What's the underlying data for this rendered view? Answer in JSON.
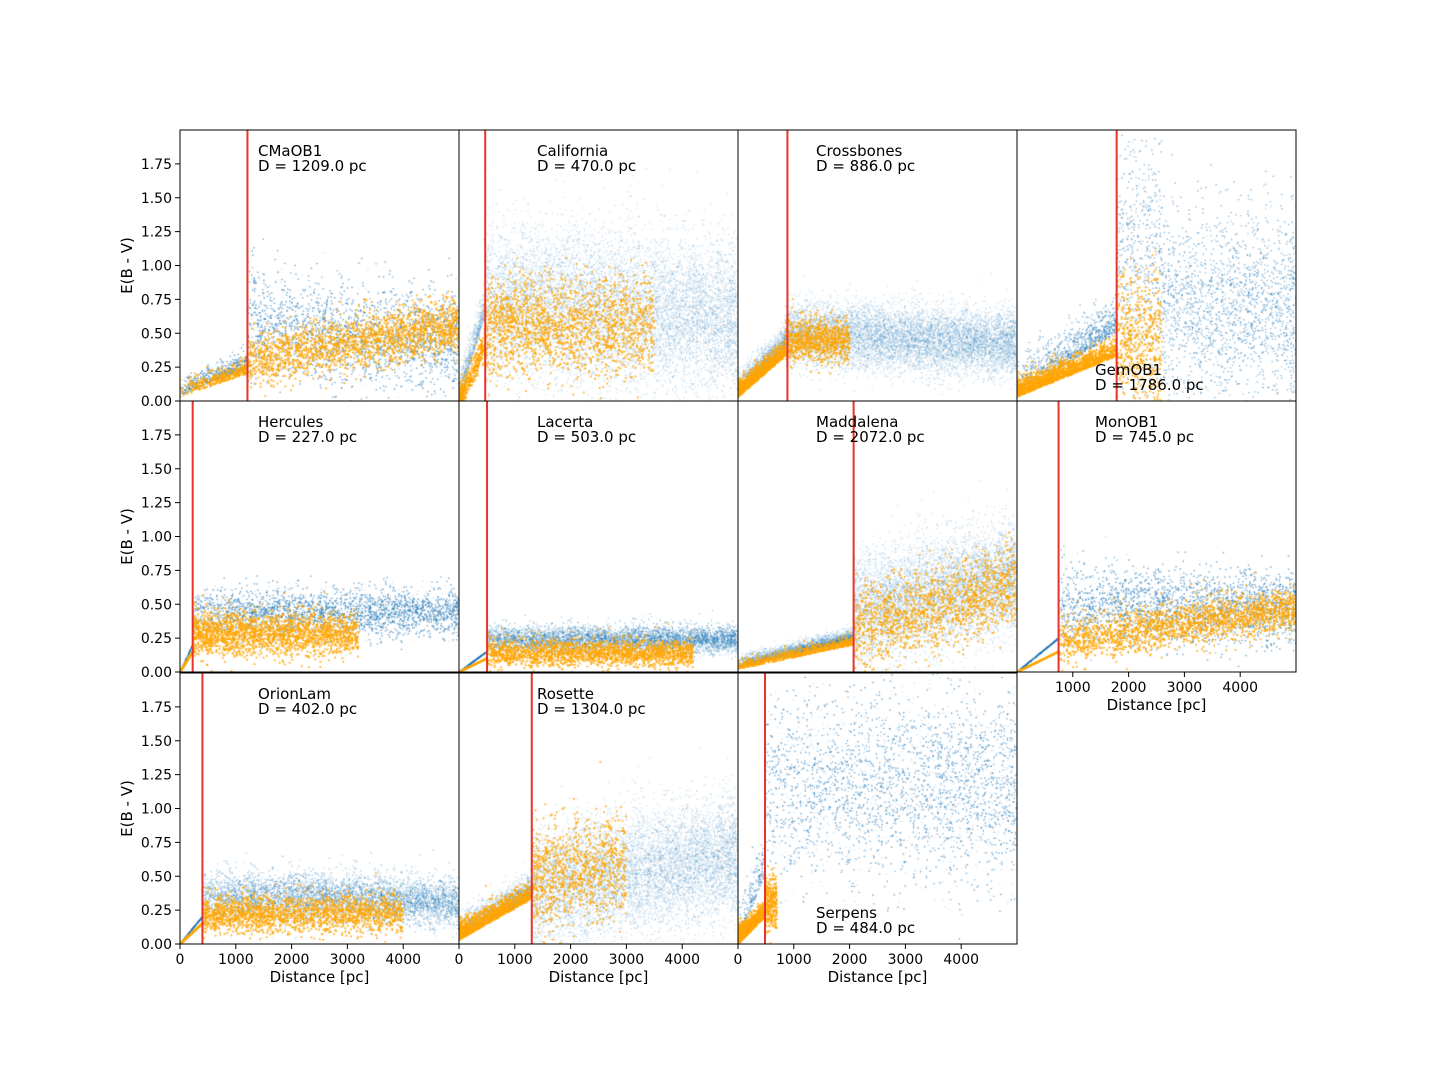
{
  "chart_data": {
    "type": "scatter",
    "x_label": "Distance [pc]",
    "y_label": "E(B - V)",
    "xlim": [
      0,
      5000
    ],
    "ylim": [
      0,
      2.0
    ],
    "x_ticks": [
      0,
      1000,
      2000,
      3000,
      4000
    ],
    "y_ticks": [
      0.0,
      0.25,
      0.5,
      0.75,
      1.0,
      1.25,
      1.5,
      1.75
    ],
    "grid": false,
    "colors": {
      "background_points": "#1f77b4",
      "highlight_points": "#ffa500",
      "distance_line": "#e8332a"
    },
    "panels": [
      {
        "name": "CMaOB1",
        "distance_label": "D = 1209.0 pc",
        "distance_pc": 1209.0,
        "label_position": "top",
        "shape": "cma",
        "show_x_ticks": false,
        "show_y_ticks": true
      },
      {
        "name": "California",
        "distance_label": "D = 470.0 pc",
        "distance_pc": 470.0,
        "label_position": "top",
        "shape": "cal",
        "show_x_ticks": false,
        "show_y_ticks": false
      },
      {
        "name": "Crossbones",
        "distance_label": "D = 886.0 pc",
        "distance_pc": 886.0,
        "label_position": "top",
        "shape": "cross",
        "show_x_ticks": false,
        "show_y_ticks": false
      },
      {
        "name": "GemOB1",
        "distance_label": "D = 1786.0 pc",
        "distance_pc": 1786.0,
        "label_position": "bottom",
        "shape": "gem",
        "show_x_ticks": false,
        "show_y_ticks": false
      },
      {
        "name": "Hercules",
        "distance_label": "D = 227.0 pc",
        "distance_pc": 227.0,
        "label_position": "top",
        "shape": "herc",
        "show_x_ticks": false,
        "show_y_ticks": true
      },
      {
        "name": "Lacerta",
        "distance_label": "D = 503.0 pc",
        "distance_pc": 503.0,
        "label_position": "top",
        "shape": "lac",
        "show_x_ticks": false,
        "show_y_ticks": false
      },
      {
        "name": "Maddalena",
        "distance_label": "D = 2072.0 pc",
        "distance_pc": 2072.0,
        "label_position": "top",
        "shape": "madd",
        "show_x_ticks": false,
        "show_y_ticks": false
      },
      {
        "name": "MonOB1",
        "distance_label": "D = 745.0 pc",
        "distance_pc": 745.0,
        "label_position": "top",
        "shape": "mon",
        "show_x_ticks": true,
        "show_y_ticks": false
      },
      {
        "name": "OrionLam",
        "distance_label": "D = 402.0 pc",
        "distance_pc": 402.0,
        "label_position": "top",
        "shape": "orion",
        "show_x_ticks": true,
        "show_y_ticks": true
      },
      {
        "name": "Rosette",
        "distance_label": "D = 1304.0 pc",
        "distance_pc": 1304.0,
        "label_position": "top",
        "shape": "ros",
        "show_x_ticks": true,
        "show_y_ticks": false
      },
      {
        "name": "Serpens",
        "distance_label": "D = 484.0 pc",
        "distance_pc": 484.0,
        "label_position": "bottom",
        "shape": "serp",
        "show_x_ticks": true,
        "show_y_ticks": false
      }
    ]
  }
}
